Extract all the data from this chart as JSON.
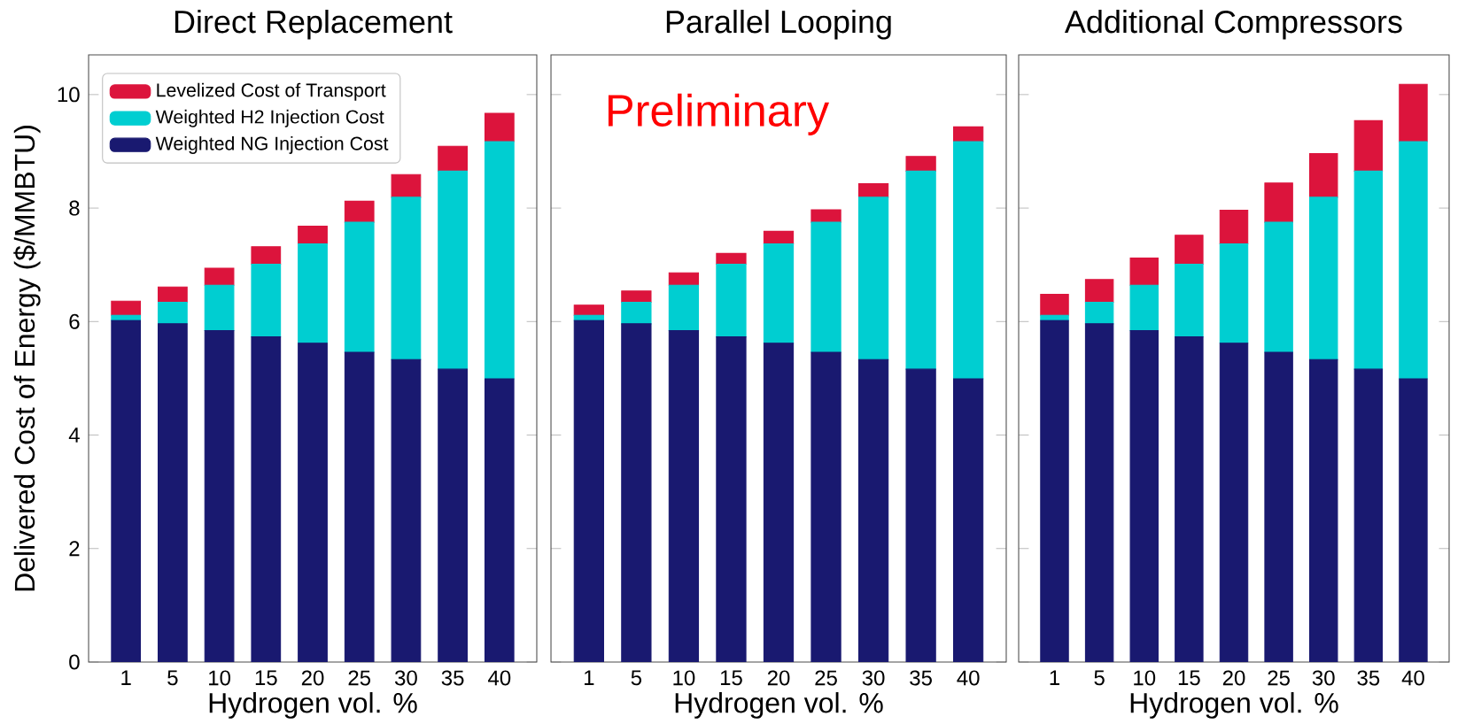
{
  "chart_data": [
    {
      "type": "bar",
      "stacked": true,
      "title": "Direct Replacement",
      "xlabel": "Hydrogen vol. %",
      "ylabel": "Delivered Cost of Energy ($/MMBTU)",
      "categories": [
        "1",
        "5",
        "10",
        "15",
        "20",
        "25",
        "30",
        "35",
        "40"
      ],
      "series": [
        {
          "name": "Weighted NG Injection Cost",
          "color": "#191970",
          "values": [
            6.02,
            5.96,
            5.84,
            5.73,
            5.62,
            5.46,
            5.33,
            5.16,
            4.99
          ]
        },
        {
          "name": "Weighted H2 Injection Cost",
          "color": "#00ced1",
          "values": [
            0.09,
            0.38,
            0.8,
            1.28,
            1.75,
            2.29,
            2.86,
            3.49,
            4.18
          ]
        },
        {
          "name": "Levelized Cost of Transport",
          "color": "#dc143c",
          "values": [
            0.25,
            0.27,
            0.3,
            0.31,
            0.31,
            0.37,
            0.4,
            0.44,
            0.5
          ]
        }
      ],
      "ylim": [
        0,
        10.7
      ],
      "yticks": [
        0,
        2,
        4,
        6,
        8,
        10
      ],
      "legend": "top left"
    },
    {
      "type": "bar",
      "stacked": true,
      "title": "Parallel Looping",
      "xlabel": "Hydrogen vol. %",
      "categories": [
        "1",
        "5",
        "10",
        "15",
        "20",
        "25",
        "30",
        "35",
        "40"
      ],
      "series": [
        {
          "color": "#191970",
          "values": [
            6.02,
            5.96,
            5.84,
            5.73,
            5.62,
            5.46,
            5.33,
            5.16,
            4.99
          ]
        },
        {
          "color": "#00ced1",
          "values": [
            0.09,
            0.38,
            0.8,
            1.28,
            1.75,
            2.29,
            2.86,
            3.49,
            4.18
          ]
        },
        {
          "color": "#dc143c",
          "values": [
            0.18,
            0.2,
            0.22,
            0.19,
            0.22,
            0.22,
            0.24,
            0.26,
            0.26
          ]
        }
      ],
      "ylim": [
        0,
        10.7
      ],
      "yticks": [
        0,
        2,
        4,
        6,
        8,
        10
      ],
      "tick_labels": "x",
      "annotations": [
        "Preliminary"
      ]
    },
    {
      "type": "bar",
      "stacked": true,
      "title": "Additional Compressors",
      "xlabel": "Hydrogen vol. %",
      "categories": [
        "1",
        "5",
        "10",
        "15",
        "20",
        "25",
        "30",
        "35",
        "40"
      ],
      "series": [
        {
          "color": "#191970",
          "values": [
            6.02,
            5.96,
            5.84,
            5.73,
            5.62,
            5.46,
            5.33,
            5.16,
            4.99
          ]
        },
        {
          "color": "#00ced1",
          "values": [
            0.09,
            0.38,
            0.8,
            1.28,
            1.75,
            2.29,
            2.86,
            3.49,
            4.18
          ]
        },
        {
          "color": "#dc143c",
          "values": [
            0.37,
            0.4,
            0.48,
            0.51,
            0.59,
            0.69,
            0.77,
            0.89,
            1.01
          ]
        }
      ],
      "ylim": [
        0,
        10.7
      ],
      "yticks": [
        0,
        2,
        4,
        6,
        8,
        10
      ],
      "tick_labels": "x"
    }
  ]
}
